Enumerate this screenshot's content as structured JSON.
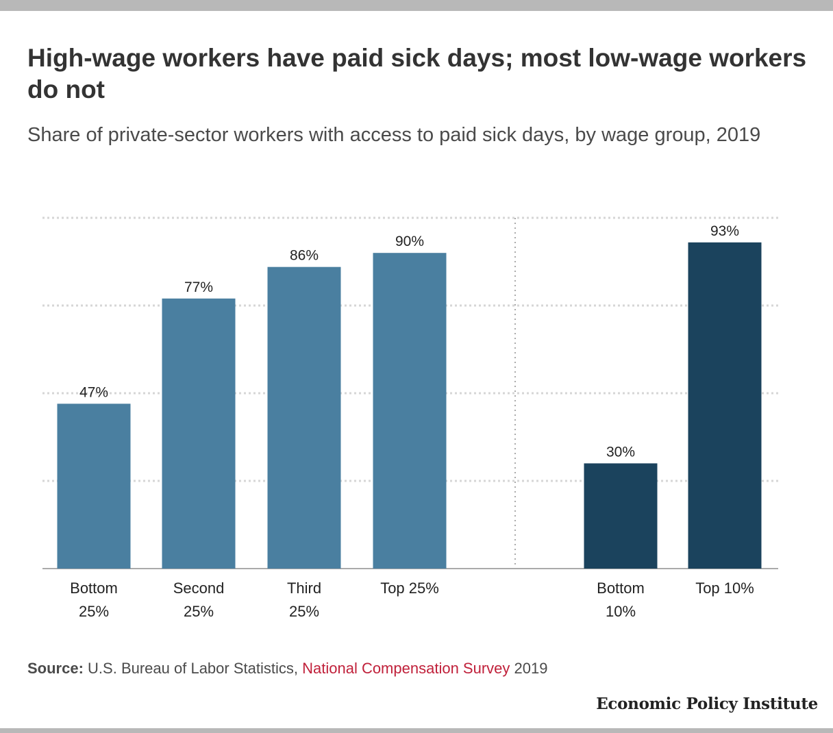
{
  "title": "High-wage workers have paid sick days; most low-wage workers do not",
  "subtitle": "Share of private-sector workers with access to paid sick days, by wage group, 2019",
  "source": {
    "label": "Source:",
    "text": "U.S. Bureau of Labor Statistics,",
    "link": "National Compensation Survey",
    "year": "2019"
  },
  "logo": "Economic Policy Institute",
  "colors": {
    "quartile_bar": "#4a7fa0",
    "decile_bar": "#1b435d",
    "grid": "#d6d6d6",
    "axis": "#aaaaaa"
  },
  "chart_data": {
    "type": "bar",
    "title": "",
    "xlabel": "",
    "ylabel": "",
    "ylim": [
      0,
      100
    ],
    "grid": true,
    "groups": [
      {
        "categories": [
          [
            "Bottom",
            "25%"
          ],
          [
            "Second",
            "25%"
          ],
          [
            "Third",
            "25%"
          ],
          [
            "Top 25%"
          ]
        ],
        "values": [
          47,
          77,
          86,
          90
        ],
        "labels": [
          "47%",
          "77%",
          "86%",
          "90%"
        ],
        "color": "#4a7fa0"
      },
      {
        "categories": [
          [
            "Bottom",
            "10%"
          ],
          [
            "Top 10%"
          ]
        ],
        "values": [
          30,
          93
        ],
        "labels": [
          "30%",
          "93%"
        ],
        "color": "#1b435d"
      }
    ]
  }
}
